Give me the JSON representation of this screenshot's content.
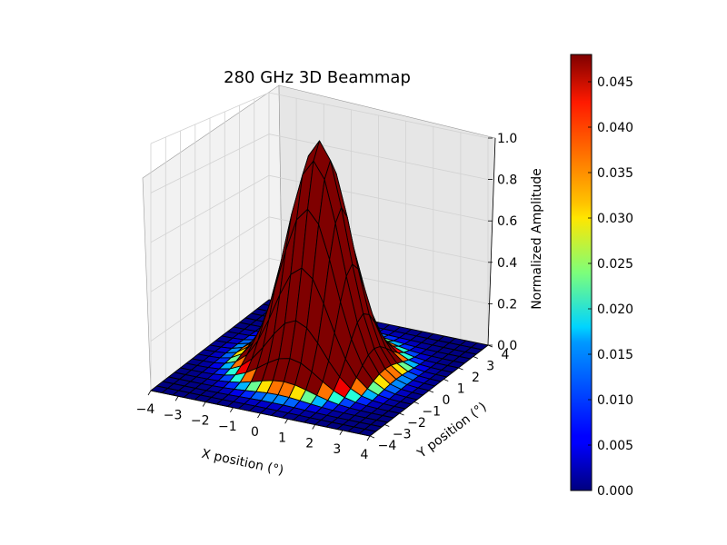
{
  "chart_data": {
    "type": "surface3d",
    "title": "280 GHz 3D Beammap",
    "xlabel": "X position (°)",
    "ylabel": "Y position (°)",
    "zlabel": "Normalized Amplitude",
    "xlim": [
      -4,
      4
    ],
    "ylim": [
      -4,
      4
    ],
    "zlim": [
      0,
      1.0
    ],
    "x_ticks": [
      "−4",
      "−3",
      "−2",
      "−1",
      "0",
      "1",
      "2",
      "3",
      "4"
    ],
    "y_ticks": [
      "−4",
      "−3",
      "−2",
      "−1",
      "0",
      "1",
      "2",
      "3",
      "4"
    ],
    "z_ticks": [
      "0.0",
      "0.2",
      "0.4",
      "0.6",
      "0.8",
      "1.0"
    ],
    "grid": true,
    "surface": {
      "shape": "gaussian",
      "peak": 1.0,
      "center": [
        0,
        0
      ],
      "sigma_deg": 1.0,
      "grid_points": 21,
      "face_color": "#7f0000",
      "edge_color": "#000000"
    },
    "colorbar": {
      "colormap": "jet",
      "range": [
        0.0,
        0.048
      ],
      "ticks": [
        "0.000",
        "0.005",
        "0.010",
        "0.015",
        "0.020",
        "0.025",
        "0.030",
        "0.035",
        "0.040",
        "0.045"
      ]
    }
  }
}
